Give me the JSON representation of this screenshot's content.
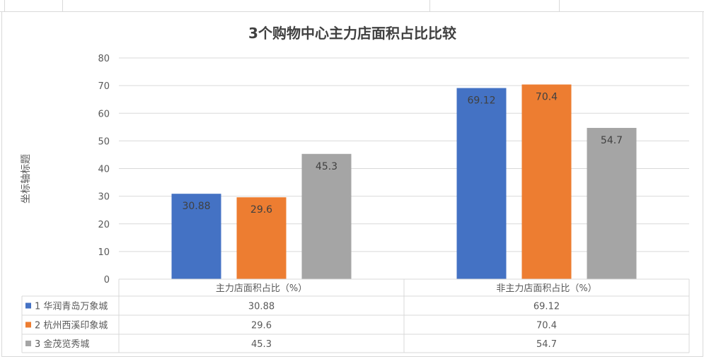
{
  "chart_data": {
    "type": "bar",
    "title": "3个购物中心主力店面积占比比较",
    "ylabel": "坐标轴标题",
    "xlabel": "",
    "ylim": [
      0,
      80
    ],
    "yticks": [
      0,
      10,
      20,
      30,
      40,
      50,
      60,
      70,
      80
    ],
    "grid": true,
    "legend": "data-table",
    "categories": [
      "主力店面积占比（%）",
      "非主力店面积占比（%）"
    ],
    "series": [
      {
        "name": "1 华润青岛万象城",
        "color": "#4472c4",
        "values": [
          30.88,
          69.12
        ],
        "labels": [
          "30.88",
          "69.12"
        ]
      },
      {
        "name": "2 杭州西溪印象城",
        "color": "#ed7d31",
        "values": [
          29.6,
          70.4
        ],
        "labels": [
          "29.6",
          "70.4"
        ]
      },
      {
        "name": "3 金茂览秀城",
        "color": "#a5a5a5",
        "values": [
          45.3,
          54.7
        ],
        "labels": [
          "45.3",
          "54.7"
        ]
      }
    ]
  }
}
